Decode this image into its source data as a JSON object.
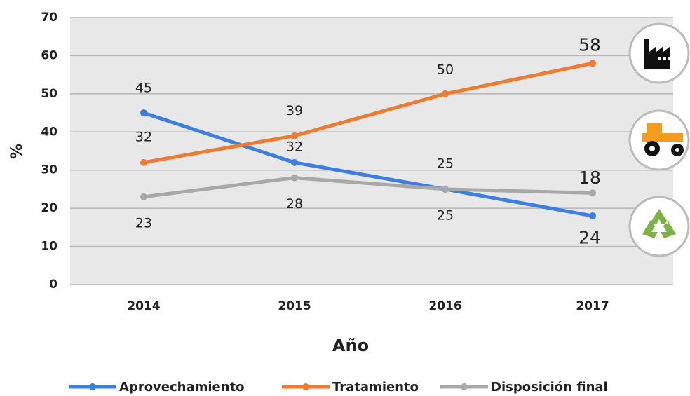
{
  "chart_data": {
    "type": "line",
    "x_label": "Año",
    "y_label": "%",
    "categories": [
      "2014",
      "2015",
      "2016",
      "2017"
    ],
    "series": [
      {
        "name": "Aprovechamiento",
        "color": "#3b7fe0",
        "values": [
          45,
          32,
          25,
          18
        ]
      },
      {
        "name": "Tratamiento",
        "color": "#f07a2e",
        "values": [
          32,
          39,
          50,
          58
        ]
      },
      {
        "name": "Disposición final",
        "color": "#a8a8a8",
        "values": [
          23,
          28,
          25,
          24
        ]
      }
    ],
    "ylim": [
      0,
      70
    ],
    "yticks": [
      0,
      10,
      20,
      30,
      40,
      50,
      60,
      70
    ],
    "grid": true,
    "legend": "bottom"
  }
}
